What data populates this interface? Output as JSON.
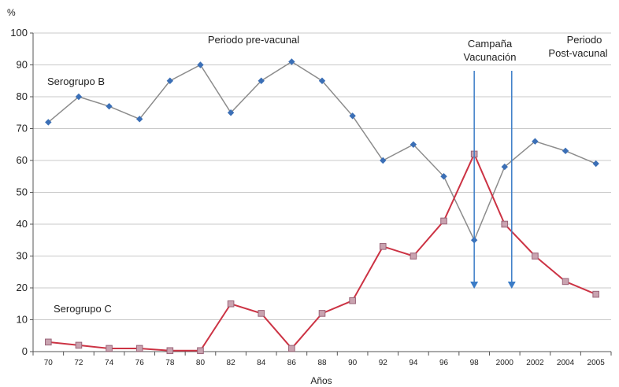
{
  "chart_data": {
    "type": "line",
    "ylabel": "%",
    "xlabel": "Años",
    "ylim": [
      0,
      100
    ],
    "yticks": [
      0,
      10,
      20,
      30,
      40,
      50,
      60,
      70,
      80,
      90,
      100
    ],
    "grid": "horizontal",
    "categories": [
      "70",
      "72",
      "74",
      "76",
      "78",
      "80",
      "82",
      "84",
      "86",
      "88",
      "90",
      "92",
      "94",
      "96",
      "98",
      "2000",
      "2002",
      "2004",
      "2005"
    ],
    "series": [
      {
        "name": "Serogrupo B",
        "color": "#8c8c8c",
        "marker": "diamond",
        "marker_color": "#3b6fb6",
        "values": [
          72,
          80,
          77,
          73,
          85,
          90,
          75,
          85,
          91,
          85,
          74,
          60,
          65,
          55,
          35,
          58,
          66,
          63,
          59
        ]
      },
      {
        "name": "Serogrupo C",
        "color": "#cc3344",
        "marker": "square",
        "marker_color": "#c9a3b0",
        "values": [
          3,
          2,
          1,
          1,
          0.3,
          0.3,
          15,
          12,
          1,
          12,
          16,
          33,
          30,
          41,
          62,
          40,
          30,
          22,
          18
        ]
      }
    ],
    "annotations": [
      {
        "text": "Periodo pre-vacunal"
      },
      {
        "text": "Campaña"
      },
      {
        "text": "Vacunación"
      },
      {
        "text": "Periodo"
      },
      {
        "text": "Post-vacunal"
      }
    ],
    "campaign_markers": [
      {
        "x": "98",
        "arrow_end_y": 20
      },
      {
        "x": "2000",
        "arrow_end_y": 20
      }
    ],
    "arrow_color": "#3b7cc7"
  }
}
